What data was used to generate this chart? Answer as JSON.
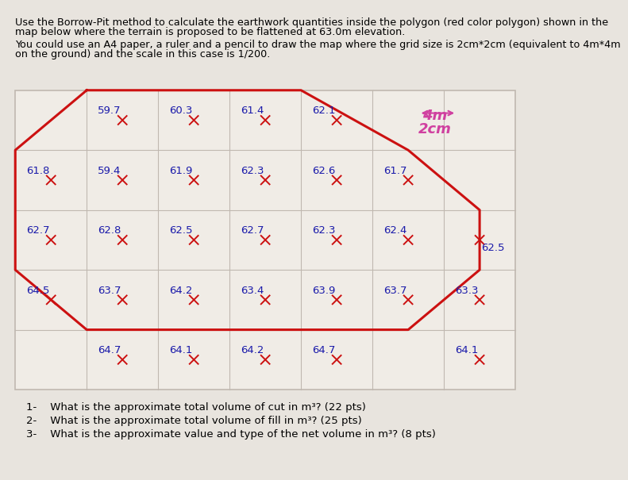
{
  "header_text1": "Use the Borrow-Pit method to calculate the earthwork quantities inside the polygon (red color polygon) shown in the",
  "header_text2": "map below where the terrain is proposed to be flattened at 63.0m elevation.",
  "sub_text1": "You could use an A4 paper, a ruler and a pencil to draw the map where the grid size is 2cm*2cm (equivalent to 4m*4m",
  "sub_text2": "on the ground) and the scale in this case is 1/200.",
  "background_color": "#e8e4de",
  "grid_bg_color": "#f0ece6",
  "grid_line_color": "#c0b8b0",
  "text_color": "#1a1aaa",
  "red_color": "#cc1111",
  "pink_color": "#d040a0",
  "elevation_grid": [
    [
      null,
      59.7,
      60.3,
      61.4,
      62.1,
      null,
      null
    ],
    [
      61.8,
      59.4,
      61.9,
      62.3,
      62.6,
      61.7,
      null
    ],
    [
      62.7,
      62.8,
      62.5,
      62.7,
      62.3,
      62.4,
      62.5
    ],
    [
      64.5,
      63.7,
      64.2,
      63.4,
      63.9,
      63.7,
      63.3
    ],
    [
      null,
      64.7,
      64.1,
      64.2,
      64.7,
      null,
      64.1
    ]
  ],
  "questions": [
    "1-    What is the approximate total volume of cut in m³? (22 pts)",
    "2-    What is the approximate total volume of fill in m³? (25 pts)",
    "3-    What is the approximate value and type of the net volume in m³? (8 pts)"
  ],
  "scale_label": "4m",
  "scale_sublabel": "2cm"
}
